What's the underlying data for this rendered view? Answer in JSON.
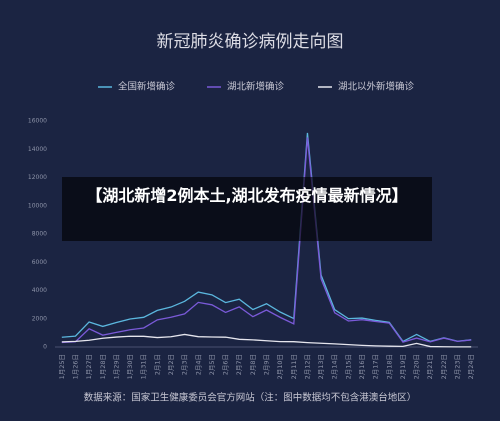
{
  "chart_data": {
    "type": "line",
    "title": "新冠肺炎确诊病例走向图",
    "categories": [
      "1月25日",
      "1月26日",
      "1月27日",
      "1月28日",
      "1月29日",
      "1月30日",
      "1月31日",
      "2月1日",
      "2月2日",
      "2月3日",
      "2月4日",
      "2月5日",
      "2月6日",
      "2月7日",
      "2月8日",
      "2月9日",
      "2月10日",
      "2月11日",
      "2月12日",
      "2月13日",
      "2月14日",
      "2月15日",
      "2月16日",
      "2月17日",
      "2月18日",
      "2月19日",
      "2月20日",
      "2月21日",
      "2月22日",
      "2月23日",
      "2月24日"
    ],
    "series": [
      {
        "name": "全国新增确诊",
        "color": "#5bb7de",
        "values": [
          688,
          769,
          1771,
          1459,
          1737,
          1982,
          2102,
          2590,
          2829,
          3235,
          3887,
          3694,
          3143,
          3385,
          2652,
          3062,
          2478,
          2015,
          15152,
          5090,
          2641,
          2009,
          2048,
          1886,
          1749,
          394,
          889,
          397,
          648,
          409,
          508
        ]
      },
      {
        "name": "湖北新增确诊",
        "color": "#7a5ad8",
        "values": [
          323,
          371,
          1291,
          840,
          1032,
          1220,
          1347,
          1921,
          2103,
          2345,
          3156,
          2987,
          2447,
          2841,
          2147,
          2618,
          2097,
          1638,
          14840,
          4823,
          2420,
          1843,
          1933,
          1807,
          1693,
          349,
          631,
          366,
          630,
          398,
          499
        ]
      },
      {
        "name": "湖北以外新增确诊",
        "color": "#e6e6ee",
        "values": [
          365,
          398,
          480,
          619,
          705,
          762,
          755,
          669,
          726,
          890,
          731,
          707,
          696,
          544,
          505,
          444,
          381,
          377,
          312,
          267,
          221,
          166,
          115,
          79,
          56,
          45,
          258,
          31,
          18,
          11,
          9
        ]
      }
    ],
    "ylim": [
      0,
      16000
    ],
    "yticks": [
      0,
      2000,
      4000,
      6000,
      8000,
      10000,
      12000,
      14000,
      16000
    ],
    "grid": false
  },
  "headline": "【湖北新增2例本土,湖北发布疫情最新情况】",
  "source": "数据来源：国家卫生健康委员会官方网站（注：图中数据均不包含港澳台地区）"
}
